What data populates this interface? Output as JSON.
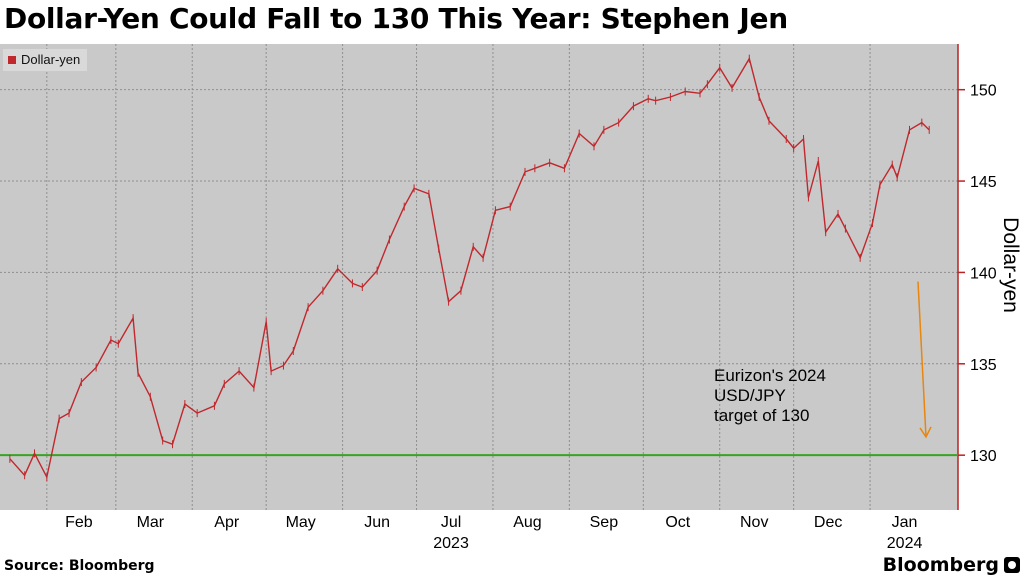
{
  "title": "Dollar-Yen Could Fall to 130 This Year: Stephen Jen",
  "source": "Source: Bloomberg",
  "brand": "Bloomberg",
  "colors": {
    "series": "#c0282d",
    "target_line": "#3aa322",
    "arrow": "#e8860e",
    "axis": "#b82323",
    "plot_bg": "#c9c9c9"
  },
  "chart_data": {
    "type": "line",
    "title": "Dollar-Yen Could Fall to 130 This Year: Stephen Jen",
    "ylabel": "Dollar-yen",
    "ylim": [
      127,
      152.5
    ],
    "yticks": [
      130,
      135,
      140,
      145,
      150
    ],
    "x_month_labels": [
      "Feb",
      "Mar",
      "Apr",
      "May",
      "Jun",
      "Jul",
      "Aug",
      "Sep",
      "Oct",
      "Nov",
      "Dec",
      "Jan"
    ],
    "x_year_labels": [
      "2023",
      "2024"
    ],
    "x_year_anchor_months": [
      "Jul",
      "Jan"
    ],
    "legend": {
      "position": "top-left",
      "entries": [
        "Dollar-yen"
      ]
    },
    "grid": true,
    "series": [
      {
        "name": "Dollar-yen",
        "x": [
          "2023-01-17",
          "2023-01-23",
          "2023-01-27",
          "2023-02-01",
          "2023-02-06",
          "2023-02-10",
          "2023-02-15",
          "2023-02-21",
          "2023-02-27",
          "2023-03-02",
          "2023-03-08",
          "2023-03-10",
          "2023-03-15",
          "2023-03-20",
          "2023-03-24",
          "2023-03-29",
          "2023-04-03",
          "2023-04-10",
          "2023-04-14",
          "2023-04-20",
          "2023-04-26",
          "2023-05-01",
          "2023-05-03",
          "2023-05-08",
          "2023-05-12",
          "2023-05-18",
          "2023-05-24",
          "2023-05-30",
          "2023-06-05",
          "2023-06-09",
          "2023-06-15",
          "2023-06-20",
          "2023-06-26",
          "2023-06-30",
          "2023-07-06",
          "2023-07-10",
          "2023-07-14",
          "2023-07-19",
          "2023-07-24",
          "2023-07-28",
          "2023-08-02",
          "2023-08-08",
          "2023-08-14",
          "2023-08-18",
          "2023-08-24",
          "2023-08-30",
          "2023-09-05",
          "2023-09-11",
          "2023-09-15",
          "2023-09-21",
          "2023-09-27",
          "2023-10-03",
          "2023-10-06",
          "2023-10-12",
          "2023-10-18",
          "2023-10-24",
          "2023-10-27",
          "2023-11-01",
          "2023-11-06",
          "2023-11-13",
          "2023-11-17",
          "2023-11-21",
          "2023-11-28",
          "2023-12-01",
          "2023-12-05",
          "2023-12-07",
          "2023-12-11",
          "2023-12-14",
          "2023-12-19",
          "2023-12-22",
          "2023-12-28",
          "2024-01-02",
          "2024-01-05",
          "2024-01-10",
          "2024-01-12",
          "2024-01-17",
          "2024-01-22",
          "2024-01-25"
        ],
        "values": [
          129.8,
          128.9,
          130.1,
          128.8,
          132.0,
          132.3,
          134.0,
          134.8,
          136.3,
          136.1,
          137.5,
          134.5,
          133.2,
          130.8,
          130.6,
          132.8,
          132.3,
          132.7,
          133.9,
          134.6,
          133.7,
          137.3,
          134.6,
          134.9,
          135.7,
          138.1,
          139.0,
          140.2,
          139.4,
          139.2,
          140.1,
          141.8,
          143.6,
          144.6,
          144.3,
          141.3,
          138.4,
          139.0,
          141.4,
          140.8,
          143.4,
          143.6,
          145.5,
          145.7,
          146.0,
          145.7,
          147.6,
          146.9,
          147.8,
          148.2,
          149.1,
          149.5,
          149.4,
          149.6,
          149.9,
          149.8,
          150.3,
          151.2,
          150.1,
          151.7,
          149.6,
          148.3,
          147.3,
          146.8,
          147.3,
          144.1,
          146.1,
          142.2,
          143.2,
          142.4,
          140.8,
          142.7,
          144.8,
          145.9,
          145.2,
          147.8,
          148.2,
          147.8
        ]
      }
    ],
    "reference_line": {
      "value": 130
    },
    "annotation": {
      "lines": [
        "Eurizon's 2024",
        "USD/JPY",
        "target of 130"
      ]
    },
    "arrow": {
      "from_value": 139.5,
      "to_value": 131
    }
  }
}
